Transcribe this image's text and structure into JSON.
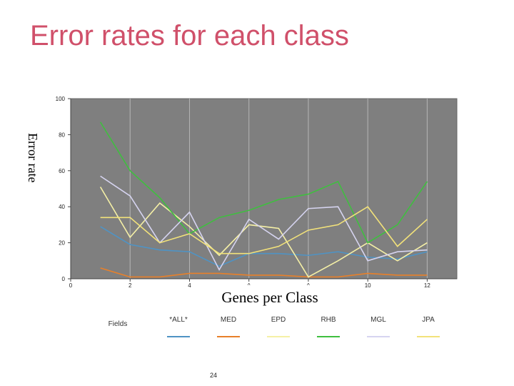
{
  "slide": {
    "title": "Error rates for each class",
    "page_number": "24"
  },
  "chart_data": {
    "type": "line",
    "title": "",
    "xlabel": "Genes per Class",
    "ylabel": "Error rate",
    "x": [
      1,
      2,
      3,
      4,
      5,
      6,
      7,
      8,
      9,
      10,
      11,
      12
    ],
    "xlim": [
      0,
      13
    ],
    "ylim": [
      0,
      100
    ],
    "x_ticks": [
      0,
      2,
      4,
      6,
      8,
      10,
      12
    ],
    "x_tick_labels": [
      "0",
      "2",
      "4",
      "^",
      "^",
      "10",
      "12"
    ],
    "y_ticks": [
      0,
      20,
      40,
      60,
      80,
      100
    ],
    "y_tick_labels": [
      "0",
      "20",
      "40",
      "60",
      "80",
      "100"
    ],
    "grid": "vertical",
    "plot_background": "#7f7f7f",
    "legend": {
      "placement": "bottom",
      "title": "Fields"
    },
    "series": [
      {
        "name": "*ALL*",
        "color": "#4f93c4",
        "values": [
          29,
          19,
          16,
          15,
          7,
          14,
          14,
          13,
          15,
          12,
          11,
          15
        ]
      },
      {
        "name": "MED",
        "color": "#e8802a",
        "values": [
          6,
          1,
          1,
          3,
          3,
          2,
          2,
          1,
          1,
          3,
          2,
          2
        ]
      },
      {
        "name": "EPD",
        "color": "#f5f0a6",
        "values": [
          51,
          23,
          42,
          29,
          13,
          30,
          28,
          1,
          10,
          20,
          10,
          20
        ]
      },
      {
        "name": "RHB",
        "color": "#3fbf3f",
        "values": [
          87,
          60,
          45,
          25,
          34,
          38,
          44,
          47,
          54,
          20,
          30,
          54
        ]
      },
      {
        "name": "MGL",
        "color": "#d6d4f0",
        "values": [
          57,
          46,
          20,
          37,
          5,
          33,
          22,
          39,
          40,
          10,
          15,
          16
        ]
      },
      {
        "name": "JPA",
        "color": "#f2e27a",
        "values": [
          34,
          34,
          20,
          25,
          14,
          14,
          18,
          27,
          30,
          40,
          18,
          33
        ]
      }
    ]
  }
}
